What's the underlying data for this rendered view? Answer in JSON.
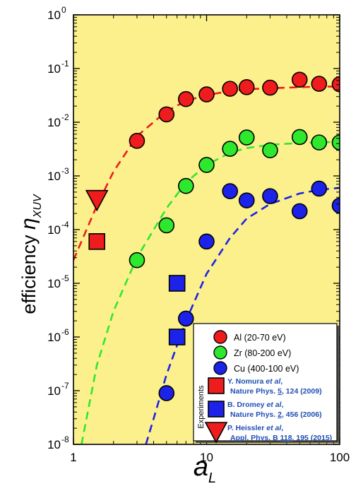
{
  "chart_data": {
    "type": "scatter",
    "xscale": "log",
    "yscale": "log",
    "xlim": [
      1,
      100
    ],
    "ylim": [
      1e-08,
      1
    ],
    "grid": false,
    "background_color": "#fbf08c",
    "ylabel_prefix": "efficiency ",
    "ylabel_symbol": "η",
    "ylabel_subscript": "XUV",
    "xlabel_symbol": "a",
    "xlabel_subscript": "L",
    "x_ticks": [
      {
        "value": 1,
        "label": "1"
      },
      {
        "value": 10,
        "label": "10"
      },
      {
        "value": 100,
        "label": "100"
      }
    ],
    "y_ticks": [
      {
        "value": 1,
        "exp": "0"
      },
      {
        "value": 0.1,
        "exp": "-1"
      },
      {
        "value": 0.01,
        "exp": "-2"
      },
      {
        "value": 0.001,
        "exp": "-3"
      },
      {
        "value": 0.0001,
        "exp": "-4"
      },
      {
        "value": 1e-05,
        "exp": "-5"
      },
      {
        "value": 1e-06,
        "exp": "-6"
      },
      {
        "value": 1e-07,
        "exp": "-7"
      },
      {
        "value": 1e-08,
        "exp": "-8"
      }
    ],
    "y_tick_base": "10",
    "series": [
      {
        "name": "Al (20-70 eV)",
        "marker": "circle",
        "color": "#ee1c1c",
        "points": [
          [
            3,
            0.0045
          ],
          [
            5,
            0.014
          ],
          [
            7,
            0.027
          ],
          [
            10,
            0.033
          ],
          [
            15,
            0.042
          ],
          [
            20,
            0.045
          ],
          [
            30,
            0.044
          ],
          [
            50,
            0.062
          ],
          [
            70,
            0.052
          ],
          [
            100,
            0.051
          ]
        ],
        "fit": [
          [
            1,
            2.7e-05
          ],
          [
            1.5,
            0.00028
          ],
          [
            2,
            0.0012
          ],
          [
            3,
            0.0055
          ],
          [
            5,
            0.016
          ],
          [
            7,
            0.025
          ],
          [
            10,
            0.032
          ],
          [
            15,
            0.038
          ],
          [
            20,
            0.041
          ],
          [
            30,
            0.043
          ],
          [
            50,
            0.045
          ],
          [
            70,
            0.046
          ],
          [
            100,
            0.046
          ]
        ]
      },
      {
        "name": "Zr (80-200 eV)",
        "marker": "circle",
        "color": "#2ee82e",
        "points": [
          [
            3,
            2.7e-05
          ],
          [
            5,
            0.00012
          ],
          [
            7,
            0.00065
          ],
          [
            10,
            0.0016
          ],
          [
            15,
            0.0032
          ],
          [
            20,
            0.0052
          ],
          [
            30,
            0.003
          ],
          [
            50,
            0.0053
          ],
          [
            70,
            0.0042
          ],
          [
            100,
            0.0042
          ]
        ],
        "fit": [
          [
            1.15,
            1e-08
          ],
          [
            1.5,
            3e-07
          ],
          [
            2,
            3e-06
          ],
          [
            3,
            3e-05
          ],
          [
            5,
            0.00025
          ],
          [
            7,
            0.00075
          ],
          [
            10,
            0.0016
          ],
          [
            15,
            0.0027
          ],
          [
            20,
            0.0033
          ],
          [
            30,
            0.0038
          ],
          [
            50,
            0.0041
          ],
          [
            70,
            0.0042
          ],
          [
            100,
            0.0043
          ]
        ]
      },
      {
        "name": "Cu (400-100 eV)",
        "marker": "circle",
        "color": "#1d22e8",
        "points": [
          [
            5,
            9e-08
          ],
          [
            7,
            2.2e-06
          ],
          [
            10,
            6e-05
          ],
          [
            15,
            0.00052
          ],
          [
            20,
            0.00035
          ],
          [
            30,
            0.00042
          ],
          [
            50,
            0.00022
          ],
          [
            70,
            0.00058
          ],
          [
            100,
            0.00028
          ]
        ],
        "fit": [
          [
            3.5,
            1e-08
          ],
          [
            4,
            3e-08
          ],
          [
            5,
            2e-07
          ],
          [
            7,
            2e-06
          ],
          [
            10,
            1.5e-05
          ],
          [
            15,
            7e-05
          ],
          [
            20,
            0.00016
          ],
          [
            30,
            0.0003
          ],
          [
            50,
            0.00047
          ],
          [
            70,
            0.00055
          ],
          [
            100,
            0.0006
          ]
        ]
      }
    ],
    "experiments_label": "Experiments",
    "experiments": [
      {
        "marker": "square",
        "color": "#ee1c1c",
        "points": [
          [
            1.5,
            6e-05
          ]
        ],
        "ref_author": "Y. Nomura ",
        "ref_etal": "et al",
        "ref_comma": ",",
        "ref_journal": "Nature Phys. ",
        "ref_volume": "5",
        "ref_pages": ", 124 (2009)"
      },
      {
        "marker": "square",
        "color": "#1d22e8",
        "points": [
          [
            6,
            1e-05
          ],
          [
            6,
            1e-06
          ]
        ],
        "ref_author": "B. Dromey ",
        "ref_etal": "et al",
        "ref_comma": ",",
        "ref_journal": "Nature Phys. ",
        "ref_volume": "2",
        "ref_pages": ", 456 (2006)"
      },
      {
        "marker": "triangle-down",
        "color": "#ee1c1c",
        "points": [
          [
            1.5,
            0.00035
          ]
        ],
        "ref_author": "P. Heissler ",
        "ref_etal": "et al",
        "ref_comma": ",",
        "ref_journal": "Appl. Phys. B ",
        "ref_volume": "118",
        "ref_pages": ", 195 (2015)"
      }
    ]
  }
}
